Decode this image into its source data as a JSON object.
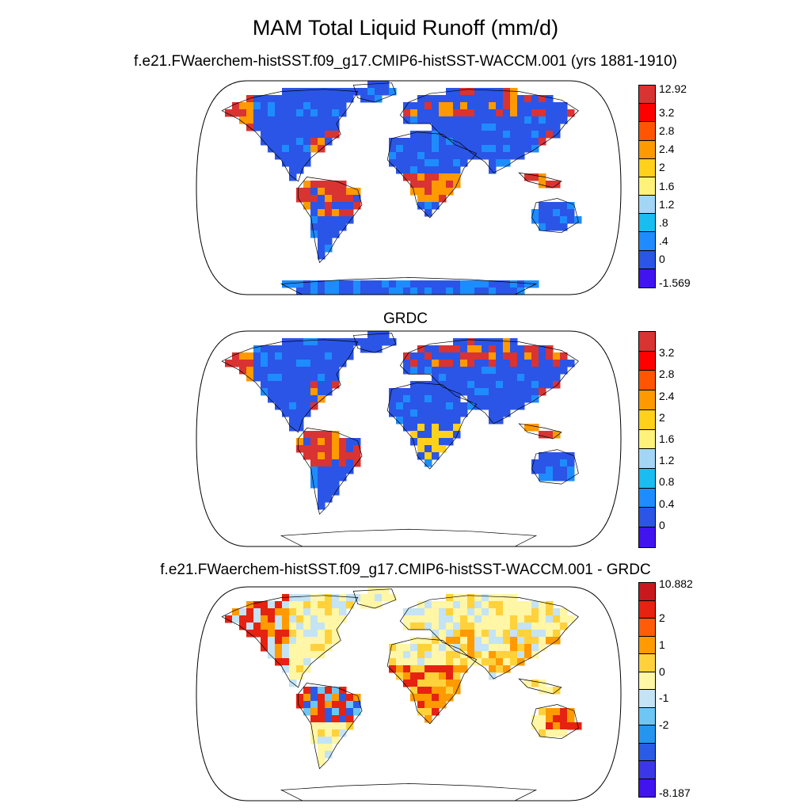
{
  "title": "MAM Total Liquid Runoff (mm/d)",
  "panels": [
    {
      "title": "f.e21.FWaerchem-histSST.f09_g17.CMIP6-histSST-WACCM.001 (yrs 1881-1910)",
      "colorbar": {
        "colors": [
          "#d93332",
          "#ff0000",
          "#ff5500",
          "#ff9900",
          "#ffd11a",
          "#fff27a",
          "#a3d6f5",
          "#19bdf2",
          "#1e8cff",
          "#2b55e6",
          "#4013ef"
        ],
        "labels": [
          "12.92",
          "3.2",
          "2.8",
          "2.4",
          "2",
          "1.6",
          "1.2",
          ".8",
          ".4",
          "0",
          "-1.569"
        ]
      }
    },
    {
      "title": "GRDC",
      "colorbar": {
        "colors": [
          "#d93332",
          "#ff0000",
          "#ff5500",
          "#ff9900",
          "#ffd11a",
          "#fff27a",
          "#a3d6f5",
          "#19bdf2",
          "#1e8cff",
          "#2b55e6",
          "#4013ef"
        ],
        "labels": [
          "3.2",
          "2.8",
          "2.4",
          "2",
          "1.6",
          "1.2",
          "0.8",
          "0.4",
          "0"
        ]
      }
    },
    {
      "title": "f.e21.FWaerchem-histSST.f09_g17.CMIP6-histSST-WACCM.001 - GRDC",
      "colorbar": {
        "colors": [
          "#c8181e",
          "#e62210",
          "#ff5c0a",
          "#ff9a00",
          "#ffd23c",
          "#fff6a6",
          "#c4e3f5",
          "#6ec6f5",
          "#2496f0",
          "#2a5be6",
          "#3c37e6",
          "#4013ef"
        ],
        "labels": [
          "10.882",
          "2",
          "1",
          "0",
          "-1",
          "-2",
          "-8.187"
        ]
      }
    }
  ]
}
